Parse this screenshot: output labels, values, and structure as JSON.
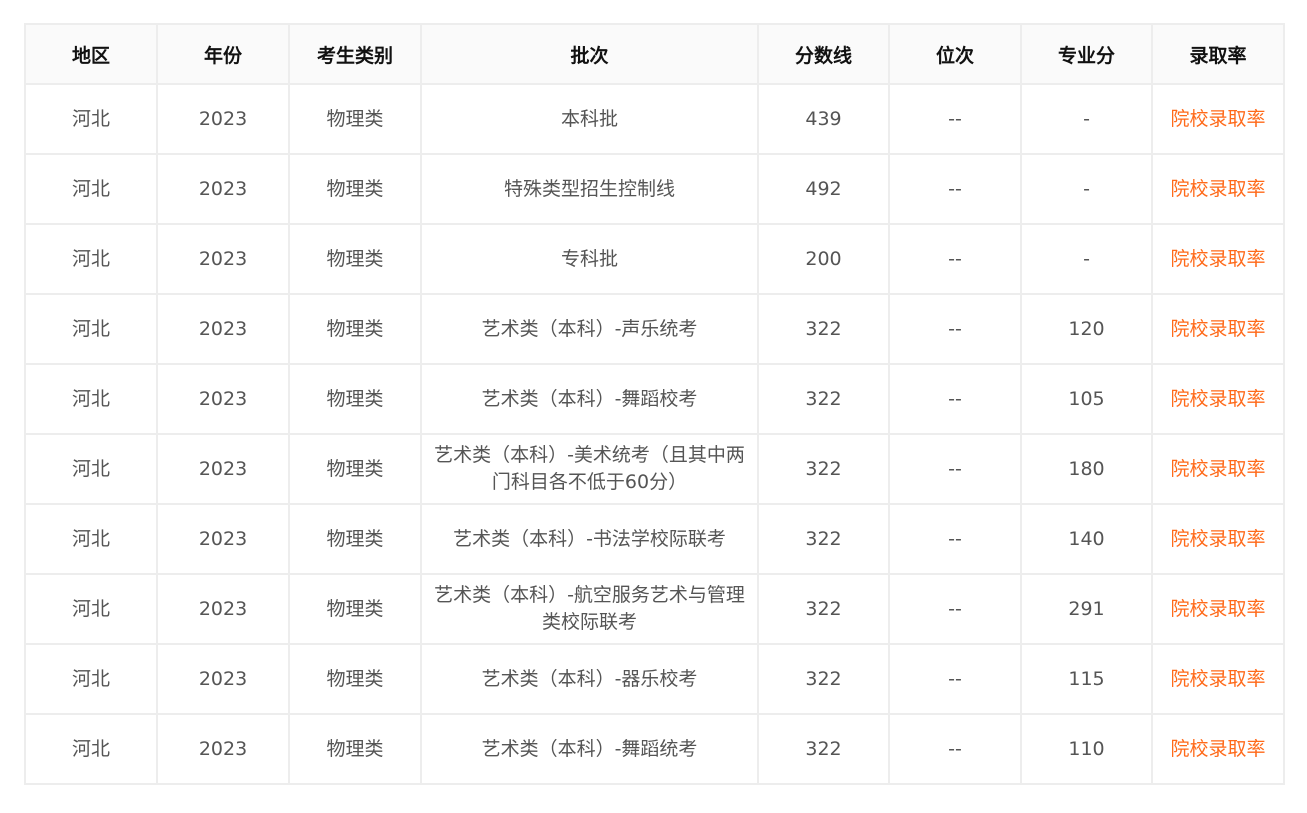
{
  "headers": [
    "地区",
    "年份",
    "考生类别",
    "批次",
    "分数线",
    "位次",
    "专业分",
    "录取率"
  ],
  "link_color": "#ff6a1a",
  "rows": [
    {
      "region": "河北",
      "year": "2023",
      "category": "物理类",
      "batch": "本科批",
      "score": "439",
      "rank": "--",
      "major_score": "-",
      "link": "院校录取率"
    },
    {
      "region": "河北",
      "year": "2023",
      "category": "物理类",
      "batch": "特殊类型招生控制线",
      "score": "492",
      "rank": "--",
      "major_score": "-",
      "link": "院校录取率"
    },
    {
      "region": "河北",
      "year": "2023",
      "category": "物理类",
      "batch": "专科批",
      "score": "200",
      "rank": "--",
      "major_score": "-",
      "link": "院校录取率"
    },
    {
      "region": "河北",
      "year": "2023",
      "category": "物理类",
      "batch": "艺术类（本科）-声乐统考",
      "score": "322",
      "rank": "--",
      "major_score": "120",
      "link": "院校录取率"
    },
    {
      "region": "河北",
      "year": "2023",
      "category": "物理类",
      "batch": "艺术类（本科）-舞蹈校考",
      "score": "322",
      "rank": "--",
      "major_score": "105",
      "link": "院校录取率"
    },
    {
      "region": "河北",
      "year": "2023",
      "category": "物理类",
      "batch": "艺术类（本科）-美术统考（且其中两门科目各不低于60分）",
      "score": "322",
      "rank": "--",
      "major_score": "180",
      "link": "院校录取率"
    },
    {
      "region": "河北",
      "year": "2023",
      "category": "物理类",
      "batch": "艺术类（本科）-书法学校际联考",
      "score": "322",
      "rank": "--",
      "major_score": "140",
      "link": "院校录取率"
    },
    {
      "region": "河北",
      "year": "2023",
      "category": "物理类",
      "batch": "艺术类（本科）-航空服务艺术与管理类校际联考",
      "score": "322",
      "rank": "--",
      "major_score": "291",
      "link": "院校录取率"
    },
    {
      "region": "河北",
      "year": "2023",
      "category": "物理类",
      "batch": "艺术类（本科）-器乐校考",
      "score": "322",
      "rank": "--",
      "major_score": "115",
      "link": "院校录取率"
    },
    {
      "region": "河北",
      "year": "2023",
      "category": "物理类",
      "batch": "艺术类（本科）-舞蹈统考",
      "score": "322",
      "rank": "--",
      "major_score": "110",
      "link": "院校录取率"
    }
  ]
}
